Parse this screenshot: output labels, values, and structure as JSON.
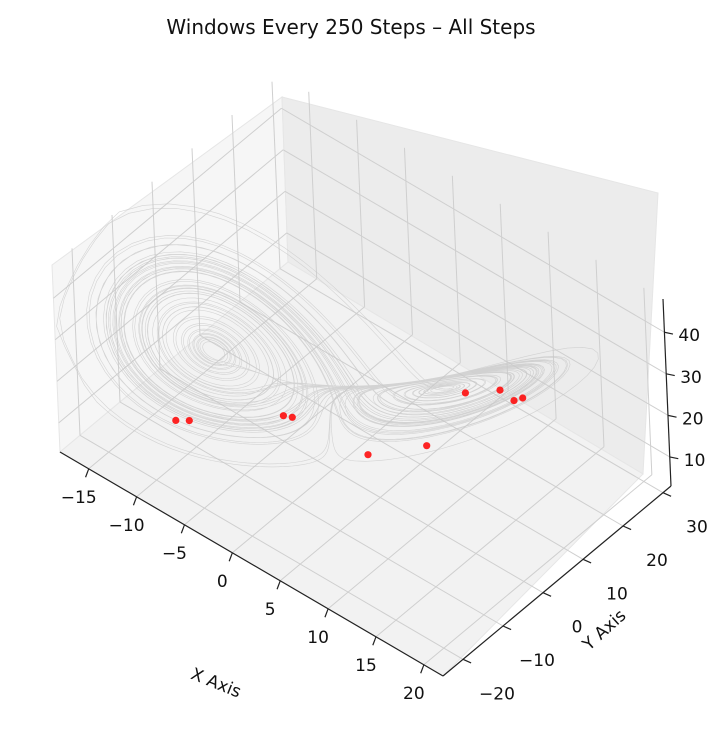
{
  "chart_data": {
    "type": "scatter",
    "projection": "3d",
    "title": "Windows Every 250 Steps – All Steps",
    "xlabel": "X Axis",
    "ylabel": "Y Axis",
    "zlabel": "",
    "x_ticks": [
      "−15",
      "−10",
      "−5",
      "0",
      "5",
      "10",
      "15",
      "20"
    ],
    "y_ticks": [
      "−20",
      "−10",
      "0",
      "10",
      "20",
      "30"
    ],
    "z_ticks": [
      "10",
      "20",
      "30",
      "40"
    ],
    "grid": true,
    "background_series": {
      "kind": "trajectory",
      "description": "Lorenz attractor trajectory",
      "color": "#c8c8c8"
    },
    "series": [
      {
        "color": "#ff0000",
        "points": [
          {
            "x": -11.0,
            "y": -12.5,
            "z": 10.0
          },
          {
            "x": -10.0,
            "y": -11.5,
            "z": 10.5
          },
          {
            "x": -3.0,
            "y": -4.5,
            "z": 15.5
          },
          {
            "x": -2.5,
            "y": -3.5,
            "z": 15.0
          },
          {
            "x": 3.0,
            "y": 2.0,
            "z": 9.0
          },
          {
            "x": 9.5,
            "y": 11.5,
            "z": 25.0
          },
          {
            "x": 13.0,
            "y": 12.0,
            "z": 30.0
          },
          {
            "x": 14.0,
            "y": 13.0,
            "z": 28.0
          },
          {
            "x": 14.5,
            "y": 14.0,
            "z": 28.5
          },
          {
            "x": 8.0,
            "y": 5.0,
            "z": 15.5
          }
        ]
      }
    ]
  }
}
